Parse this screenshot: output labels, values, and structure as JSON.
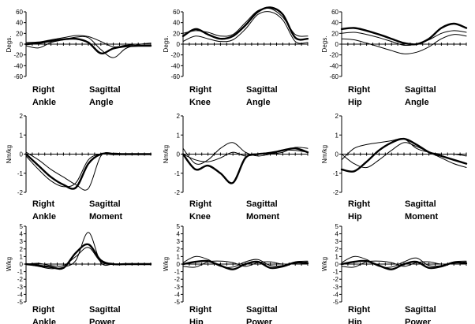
{
  "chart_data": [
    {
      "type": "line",
      "ylabel": "Degs.",
      "ylim": [
        -60,
        60
      ],
      "yticks": [
        60,
        40,
        20,
        0,
        -20,
        -40,
        -60
      ],
      "caption": [
        "Right",
        "Sagittal",
        "Ankle",
        "Angle"
      ],
      "x": [
        0,
        10,
        20,
        30,
        40,
        50,
        60,
        70,
        80,
        90,
        100
      ],
      "series": [
        {
          "style": "thick",
          "values": [
            0,
            2,
            6,
            9,
            10,
            3,
            -17,
            -8,
            -4,
            -3,
            -3
          ]
        },
        {
          "style": "thin",
          "values": [
            -3,
            -7,
            3,
            8,
            13,
            12,
            -10,
            -25,
            -8,
            -1,
            2
          ]
        },
        {
          "style": "thin",
          "values": [
            3,
            4,
            8,
            12,
            16,
            14,
            5,
            -5,
            -2,
            0,
            0
          ]
        }
      ]
    },
    {
      "type": "line",
      "ylabel": "Degs.",
      "ylim": [
        -60,
        60
      ],
      "yticks": [
        60,
        40,
        20,
        0,
        -20,
        -40,
        -60
      ],
      "caption": [
        "Right",
        "Sagittal",
        "Knee",
        "Angle"
      ],
      "x": [
        0,
        10,
        20,
        30,
        40,
        50,
        60,
        70,
        80,
        90,
        100
      ],
      "series": [
        {
          "style": "thick",
          "values": [
            15,
            28,
            18,
            10,
            15,
            35,
            60,
            68,
            55,
            12,
            10
          ]
        },
        {
          "style": "thin",
          "values": [
            5,
            15,
            10,
            5,
            8,
            28,
            55,
            60,
            45,
            5,
            3
          ]
        },
        {
          "style": "thin",
          "values": [
            20,
            25,
            22,
            15,
            18,
            40,
            62,
            66,
            50,
            18,
            15
          ]
        }
      ]
    },
    {
      "type": "line",
      "ylabel": "Degs.",
      "ylim": [
        -60,
        60
      ],
      "yticks": [
        60,
        40,
        20,
        0,
        -20,
        -40,
        -60
      ],
      "caption": [
        "Right",
        "Sagittal",
        "Hip",
        "Angle"
      ],
      "x": [
        0,
        10,
        20,
        30,
        40,
        50,
        60,
        70,
        80,
        90,
        100
      ],
      "series": [
        {
          "style": "thick",
          "values": [
            28,
            30,
            25,
            18,
            10,
            2,
            0,
            10,
            30,
            38,
            30
          ]
        },
        {
          "style": "thin",
          "values": [
            20,
            22,
            18,
            12,
            5,
            -2,
            0,
            8,
            20,
            25,
            22
          ]
        },
        {
          "style": "thin",
          "values": [
            10,
            8,
            2,
            -5,
            -12,
            -18,
            -15,
            -5,
            10,
            18,
            15
          ]
        }
      ]
    },
    {
      "type": "line",
      "ylabel": "Nm/kg",
      "ylim": [
        -2,
        2
      ],
      "yticks": [
        2,
        1,
        0,
        -1,
        -2
      ],
      "caption": [
        "Right",
        "Sagittal",
        "Ankle",
        "Moment"
      ],
      "x": [
        0,
        10,
        20,
        30,
        40,
        50,
        60,
        70,
        80,
        90,
        100
      ],
      "series": [
        {
          "style": "thick",
          "values": [
            0,
            -0.6,
            -1.2,
            -1.6,
            -1.75,
            -0.5,
            0,
            0,
            0,
            0,
            0
          ]
        },
        {
          "style": "thin",
          "values": [
            0.1,
            -0.3,
            -0.8,
            -1.2,
            -1.6,
            -1.8,
            -0.1,
            0.05,
            0,
            0,
            0
          ]
        },
        {
          "style": "thin",
          "values": [
            -0.1,
            -0.8,
            -1.4,
            -1.7,
            -1.5,
            -0.3,
            0,
            0,
            0,
            0,
            0
          ]
        }
      ]
    },
    {
      "type": "line",
      "ylabel": "Nm/kg",
      "ylim": [
        -2,
        2
      ],
      "yticks": [
        2,
        1,
        0,
        -1,
        -2
      ],
      "caption": [
        "Right",
        "Sagittal",
        "Knee",
        "Moment"
      ],
      "x": [
        0,
        10,
        20,
        30,
        40,
        50,
        60,
        70,
        80,
        90,
        100
      ],
      "series": [
        {
          "style": "thick",
          "values": [
            0,
            -0.8,
            -0.6,
            -1.0,
            -1.5,
            -0.2,
            0,
            0.05,
            0.2,
            0.3,
            0.1
          ]
        },
        {
          "style": "thin",
          "values": [
            0.3,
            -0.5,
            -0.3,
            0.3,
            0.6,
            0.1,
            -0.1,
            0,
            0.1,
            0.35,
            0.3
          ]
        },
        {
          "style": "thin",
          "values": [
            0,
            -0.3,
            -0.4,
            -0.2,
            0.1,
            -0.1,
            0,
            0.1,
            0.2,
            0.2,
            0.1
          ]
        }
      ]
    },
    {
      "type": "line",
      "ylabel": "Nm/kg",
      "ylim": [
        -2,
        2
      ],
      "yticks": [
        2,
        1,
        0,
        -1,
        -2
      ],
      "caption": [
        "Right",
        "Sagittal",
        "Hip",
        "Moment"
      ],
      "x": [
        0,
        10,
        20,
        30,
        40,
        50,
        60,
        70,
        80,
        90,
        100
      ],
      "series": [
        {
          "style": "thick",
          "values": [
            -0.8,
            -0.9,
            -0.4,
            0.2,
            0.6,
            0.8,
            0.5,
            0.1,
            -0.1,
            -0.3,
            -0.5
          ]
        },
        {
          "style": "thin",
          "values": [
            -0.3,
            0.3,
            0.5,
            0.6,
            0.7,
            0.8,
            0.3,
            0.1,
            0,
            0,
            -0.1
          ]
        },
        {
          "style": "thin",
          "values": [
            0,
            -0.5,
            -0.7,
            -0.3,
            0.2,
            0.6,
            0.4,
            0.1,
            -0.2,
            -0.5,
            -0.7
          ]
        }
      ]
    },
    {
      "type": "line",
      "ylabel": "W/kg",
      "ylim": [
        -5,
        5
      ],
      "yticks": [
        5,
        4,
        3,
        2,
        1,
        0,
        -1,
        -2,
        -3,
        -4,
        -5
      ],
      "caption": [
        "Right",
        "Sagittal",
        "Ankle",
        "Power"
      ],
      "x": [
        0,
        10,
        20,
        30,
        40,
        50,
        60,
        70,
        80,
        90,
        100
      ],
      "series": [
        {
          "style": "thick",
          "values": [
            0,
            -0.2,
            -0.4,
            -0.5,
            1.5,
            2.6,
            0.5,
            0,
            0,
            0,
            0
          ]
        },
        {
          "style": "thin",
          "values": [
            0,
            -0.3,
            -0.6,
            -0.4,
            0.5,
            4.2,
            0.2,
            0,
            0,
            0,
            0
          ]
        },
        {
          "style": "thin",
          "values": [
            0,
            0.1,
            -0.2,
            -0.2,
            1.0,
            2.2,
            0.3,
            0,
            0,
            0,
            0
          ]
        }
      ]
    },
    {
      "type": "line",
      "ylabel": "W/kg",
      "ylim": [
        -5,
        5
      ],
      "yticks": [
        5,
        4,
        3,
        2,
        1,
        0,
        -1,
        -2,
        -3,
        -4,
        -5
      ],
      "caption": [
        "Right",
        "Sagittal",
        "Hip",
        "Power"
      ],
      "x": [
        0,
        10,
        20,
        30,
        40,
        50,
        60,
        70,
        80,
        90,
        100
      ],
      "series": [
        {
          "style": "thick",
          "values": [
            0,
            0.3,
            0.4,
            -0.2,
            -0.7,
            0,
            0.3,
            -0.5,
            -0.3,
            0.2,
            0.1
          ]
        },
        {
          "style": "thin",
          "values": [
            0.2,
            1.0,
            0.6,
            -0.3,
            -0.4,
            0.3,
            0.6,
            -0.2,
            -0.2,
            0.3,
            0.4
          ]
        },
        {
          "style": "thin",
          "values": [
            -0.3,
            -0.4,
            0.3,
            0.4,
            0.2,
            -0.3,
            0.2,
            0.3,
            0,
            0.1,
            0.3
          ]
        }
      ]
    },
    {
      "type": "line",
      "ylabel": "W/kg",
      "ylim": [
        -5,
        5
      ],
      "yticks": [
        5,
        4,
        3,
        2,
        1,
        0,
        -1,
        -2,
        -3,
        -4,
        -5
      ],
      "caption": [
        "Right",
        "Sagittal",
        "Hip",
        "Power"
      ],
      "x": [
        0,
        10,
        20,
        30,
        40,
        50,
        60,
        70,
        80,
        90,
        100
      ],
      "series": [
        {
          "style": "thick",
          "values": [
            0,
            0.3,
            0.4,
            -0.2,
            -0.7,
            0,
            0.3,
            -0.5,
            -0.3,
            0.2,
            0.1
          ]
        },
        {
          "style": "thin",
          "values": [
            0.2,
            1.0,
            0.6,
            -0.3,
            -0.4,
            0.3,
            0.8,
            -0.2,
            -0.2,
            0.3,
            0.4
          ]
        },
        {
          "style": "thin",
          "values": [
            -0.3,
            -0.4,
            0.3,
            0.4,
            0.2,
            -0.3,
            0.2,
            0.3,
            0,
            0.1,
            0.3
          ]
        }
      ]
    }
  ]
}
